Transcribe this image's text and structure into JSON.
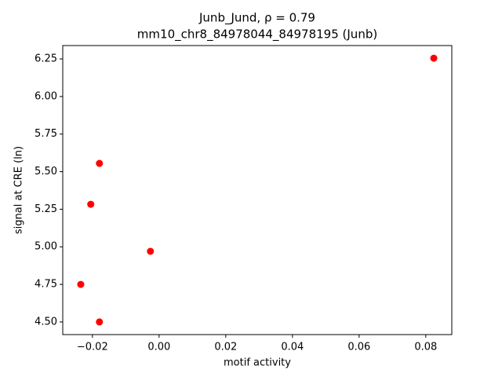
{
  "chart_data": {
    "type": "scatter",
    "title": "Junb_Jund, ρ = 0.79",
    "subtitle": "mm10_chr8_84978044_84978195 (Junb)",
    "x_label": "motif activity",
    "y_label": "signal at CRE (ln)",
    "x": [
      0.0824,
      -0.0179,
      -0.0205,
      -0.0026,
      -0.0235,
      -0.0179
    ],
    "values": [
      6.255,
      5.555,
      5.283,
      4.97,
      4.75,
      4.5
    ],
    "color": "#ff0000",
    "xlim": [
      -0.0289,
      0.0878
    ],
    "ylim": [
      4.416,
      6.339
    ],
    "xticks": [
      {
        "value": -0.02,
        "label": "−0.02"
      },
      {
        "value": 0,
        "label": "0.00"
      },
      0.02,
      0.04,
      0.06,
      0.08
    ],
    "yticks": [
      {
        "value": 4.5,
        "label": "4.50"
      },
      4.75,
      {
        "value": 5,
        "label": "5.00"
      },
      5.25,
      {
        "value": 5.5,
        "label": "5.50"
      },
      5.75,
      {
        "value": 6,
        "label": "6.00"
      },
      6.25
    ],
    "grid": false
  }
}
